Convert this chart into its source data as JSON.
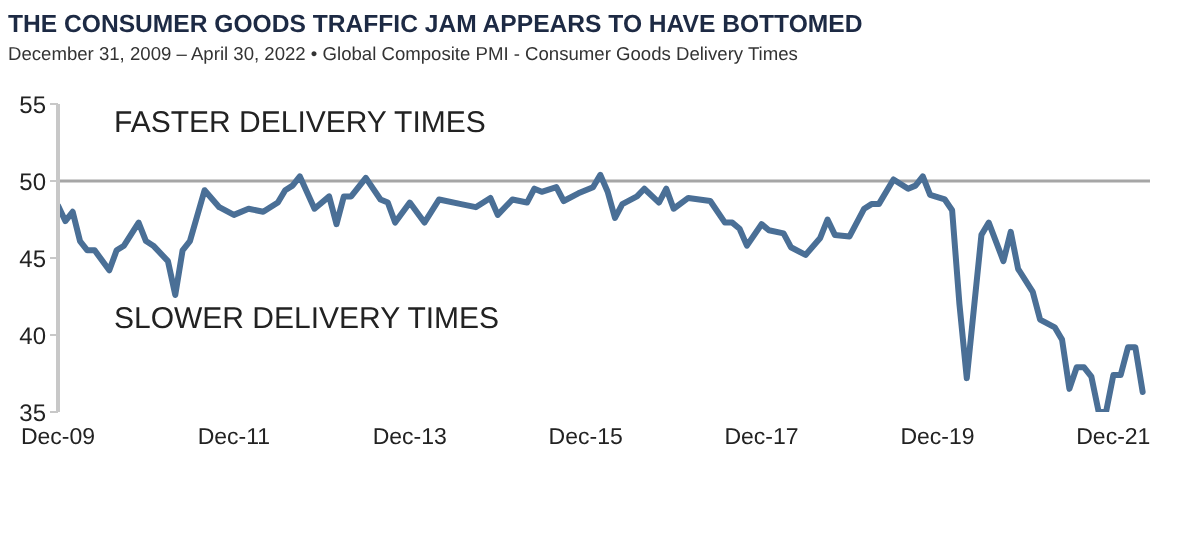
{
  "chart_data": {
    "type": "line",
    "title": "THE CONSUMER GOODS TRAFFIC JAM APPEARS TO HAVE BOTTOMED",
    "subtitle": "December 31, 2009 – April 30, 2022 • Global Composite PMI - Consumer Goods Delivery Times",
    "annotations": [
      "FASTER DELIVERY TIMES",
      "SLOWER DELIVERY TIMES"
    ],
    "x": [
      "2009-12",
      "2010-01",
      "2010-02",
      "2010-03",
      "2010-04",
      "2010-05",
      "2010-07",
      "2010-08",
      "2010-09",
      "2010-11",
      "2010-12",
      "2011-01",
      "2011-03",
      "2011-04",
      "2011-05",
      "2011-06",
      "2011-08",
      "2011-10",
      "2011-12",
      "2012-02",
      "2012-04",
      "2012-06",
      "2012-07",
      "2012-08",
      "2012-09",
      "2012-11",
      "2013-01",
      "2013-02",
      "2013-03",
      "2013-04",
      "2013-06",
      "2013-08",
      "2013-09",
      "2013-10",
      "2013-12",
      "2014-02",
      "2014-04",
      "2014-07",
      "2014-09",
      "2014-11",
      "2014-12",
      "2015-02",
      "2015-04",
      "2015-05",
      "2015-06",
      "2015-08",
      "2015-09",
      "2015-11",
      "2016-01",
      "2016-02",
      "2016-03",
      "2016-04",
      "2016-05",
      "2016-07",
      "2016-08",
      "2016-10",
      "2016-11",
      "2016-12",
      "2017-02",
      "2017-05",
      "2017-07",
      "2017-08",
      "2017-09",
      "2017-10",
      "2017-12",
      "2018-01",
      "2018-03",
      "2018-04",
      "2018-06",
      "2018-08",
      "2018-09",
      "2018-10",
      "2018-12",
      "2019-02",
      "2019-03",
      "2019-04",
      "2019-06",
      "2019-08",
      "2019-09",
      "2019-10",
      "2019-11",
      "2020-01",
      "2020-02",
      "2020-03",
      "2020-04",
      "2020-06",
      "2020-07",
      "2020-09",
      "2020-10",
      "2020-11",
      "2021-01",
      "2021-02",
      "2021-04",
      "2021-05",
      "2021-06",
      "2021-07",
      "2021-08",
      "2021-09",
      "2021-10",
      "2021-11",
      "2021-12",
      "2022-01",
      "2022-02",
      "2022-03",
      "2022-04"
    ],
    "values": [
      48.4,
      47.4,
      48.0,
      46.1,
      45.5,
      45.5,
      44.2,
      45.5,
      45.8,
      47.3,
      46.1,
      45.8,
      44.8,
      42.6,
      45.5,
      46.1,
      49.4,
      48.3,
      47.8,
      48.2,
      48.0,
      48.6,
      49.4,
      49.7,
      50.3,
      48.2,
      49.0,
      47.2,
      49.0,
      49.0,
      50.2,
      48.8,
      48.6,
      47.3,
      48.6,
      47.3,
      48.8,
      48.5,
      48.3,
      48.9,
      47.8,
      48.8,
      48.6,
      49.5,
      49.3,
      49.6,
      48.7,
      49.2,
      49.6,
      50.4,
      49.3,
      47.6,
      48.5,
      49.0,
      49.5,
      48.6,
      49.5,
      48.2,
      48.9,
      48.7,
      47.3,
      47.3,
      46.9,
      45.8,
      47.2,
      46.8,
      46.6,
      45.7,
      45.2,
      46.3,
      47.5,
      46.5,
      46.4,
      48.2,
      48.5,
      48.5,
      50.1,
      49.5,
      49.7,
      50.3,
      49.1,
      48.8,
      48.1,
      42.0,
      37.2,
      46.5,
      47.3,
      44.8,
      46.7,
      44.3,
      42.8,
      41.0,
      40.5,
      39.7,
      36.5,
      37.9,
      37.9,
      37.3,
      35.0,
      35.0,
      37.4,
      37.4,
      39.2,
      39.2,
      36.3
    ],
    "color": "#4a6f96",
    "marker": "none",
    "line_style": "solid",
    "xlim": [
      "2009-12",
      "2022-05"
    ],
    "xticks": [
      {
        "value": "2009-12",
        "label": "Dec-09"
      },
      {
        "value": "2011-12",
        "label": "Dec-11"
      },
      {
        "value": "2013-12",
        "label": "Dec-13"
      },
      {
        "value": "2015-12",
        "label": "Dec-15"
      },
      {
        "value": "2017-12",
        "label": "Dec-17"
      },
      {
        "value": "2019-12",
        "label": "Dec-19"
      },
      {
        "value": "2021-12",
        "label": "Dec-21"
      }
    ],
    "ylim": [
      35,
      55
    ],
    "yticks": [
      35,
      40,
      45,
      50,
      55
    ],
    "ref_lines": [
      {
        "axis": "y",
        "value": 50,
        "color": "#a6a6a6"
      }
    ]
  }
}
